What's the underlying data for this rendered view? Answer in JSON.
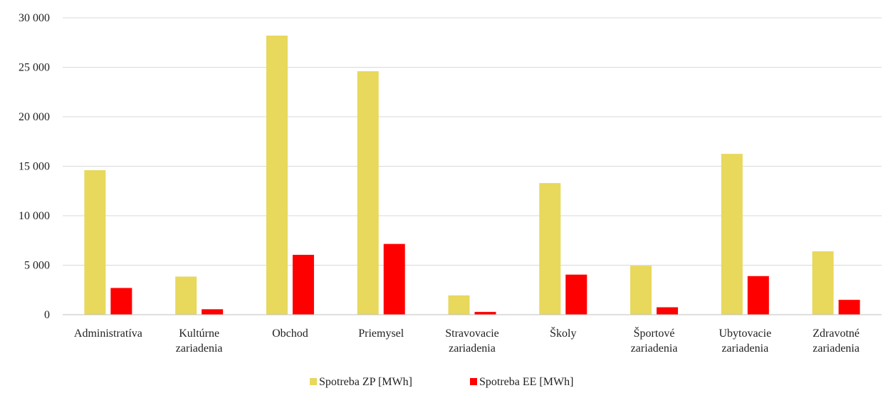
{
  "chart_data": {
    "type": "bar",
    "categories": [
      [
        "Administratíva"
      ],
      [
        "Kultúrne",
        "zariadenia"
      ],
      [
        "Obchod"
      ],
      [
        "Priemysel"
      ],
      [
        "Stravovacie",
        "zariadenia"
      ],
      [
        "Školy"
      ],
      [
        "Športové",
        "zariadenia"
      ],
      [
        "Ubytovacie",
        "zariadenia"
      ],
      [
        "Zdravotné",
        "zariadenia"
      ]
    ],
    "series": [
      {
        "name": "Spotreba ZP [MWh]",
        "color": "#e8d85c",
        "values": [
          14600,
          3850,
          28200,
          24600,
          1950,
          13300,
          4950,
          16250,
          6400
        ]
      },
      {
        "name": "Spotreba EE [MWh]",
        "color": "#ff0000",
        "values": [
          2700,
          550,
          6050,
          7150,
          280,
          4050,
          750,
          3900,
          1500
        ]
      }
    ],
    "y_ticks": [
      "0",
      "5 000",
      "10 000",
      "15 000",
      "20 000",
      "25 000",
      "30 000"
    ],
    "ylim": [
      0,
      30000
    ],
    "grid": true,
    "legend_position": "bottom"
  }
}
